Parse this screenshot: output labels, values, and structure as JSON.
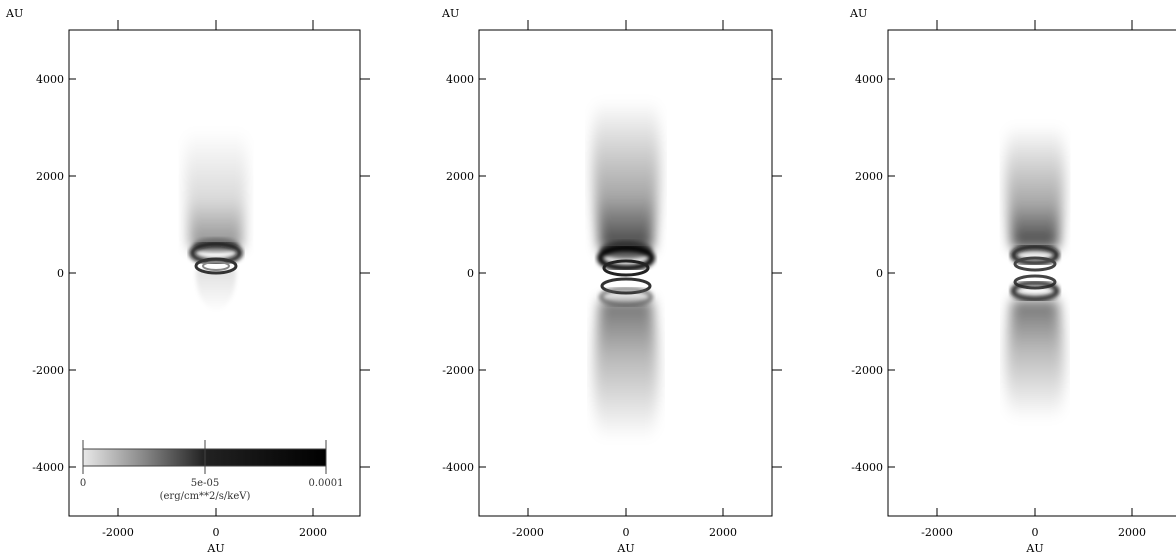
{
  "figure": {
    "unit_label": "AU",
    "x_ticks": [
      "-2000",
      "0",
      "2000"
    ],
    "y_ticks": [
      "4000",
      "2000",
      "0",
      "-2000",
      "-4000"
    ],
    "colorbar": {
      "min_label": "0",
      "mid_label": "5e-05",
      "max_label": "0.0001",
      "units": "(erg/cm**2/s/keV)"
    },
    "panels": [
      {
        "id": "left"
      },
      {
        "id": "middle"
      },
      {
        "id": "right"
      }
    ],
    "colors": {
      "frame": "#000000",
      "background": "#ffffff",
      "ink": "#000000"
    }
  }
}
